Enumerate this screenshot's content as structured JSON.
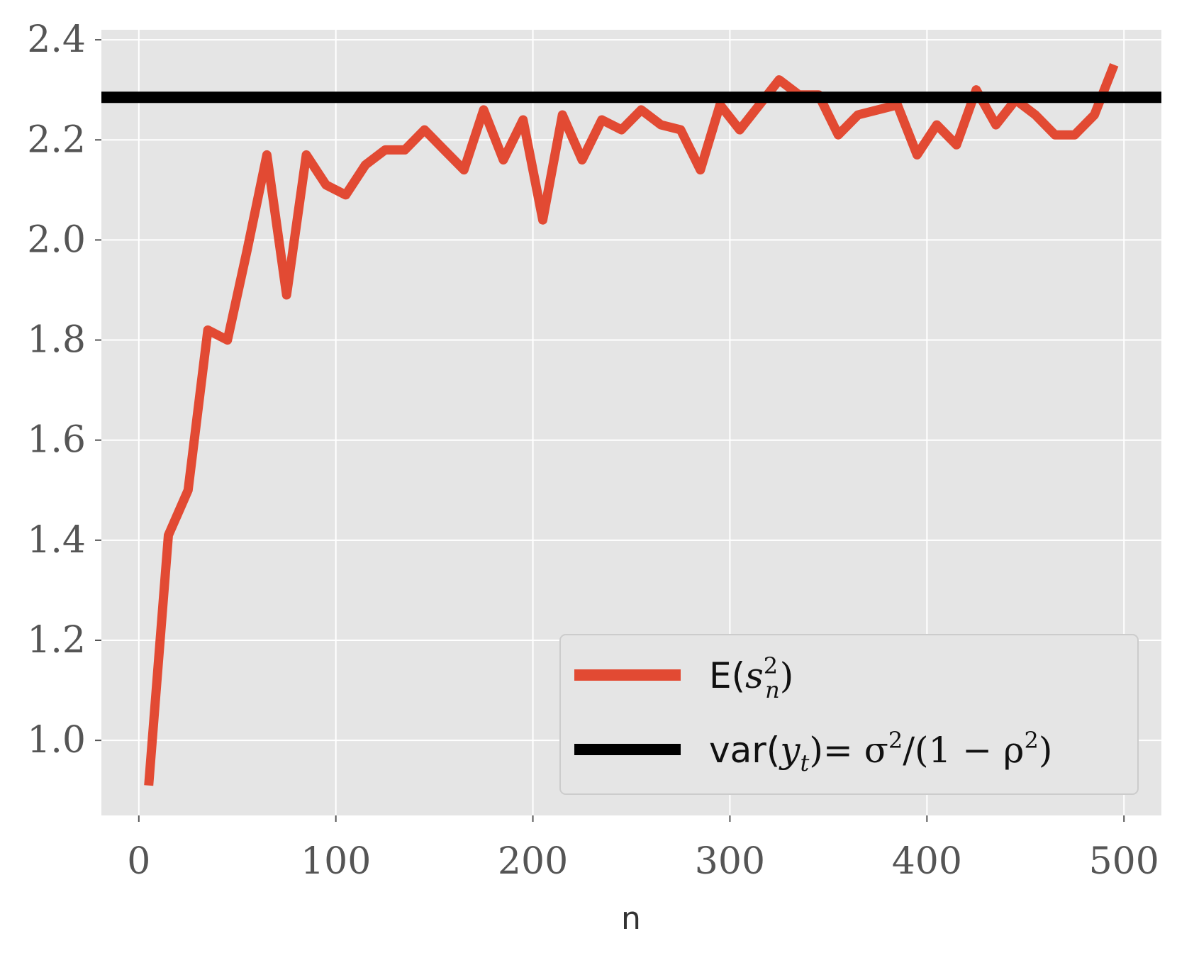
{
  "chart_data": {
    "type": "line",
    "xlabel": "n",
    "ylabel": "",
    "xlim": [
      -19,
      519
    ],
    "ylim": [
      0.85,
      2.42
    ],
    "xticks": [
      0,
      100,
      200,
      300,
      400,
      500
    ],
    "yticks": [
      1.0,
      1.2,
      1.4,
      1.6,
      1.8,
      2.0,
      2.2,
      2.4
    ],
    "xtick_labels": [
      "0",
      "100",
      "200",
      "300",
      "400",
      "500"
    ],
    "ytick_labels": [
      "1.0",
      "1.2",
      "1.4",
      "1.6",
      "1.8",
      "2.0",
      "2.2",
      "2.4"
    ],
    "grid": true,
    "legend_position": "lower-right",
    "series": [
      {
        "name": "E(s_n^2)",
        "color": "#E24A33",
        "x": [
          5,
          15,
          25,
          35,
          45,
          55,
          65,
          75,
          85,
          95,
          105,
          115,
          125,
          135,
          145,
          155,
          165,
          175,
          185,
          195,
          205,
          215,
          225,
          235,
          245,
          255,
          265,
          275,
          285,
          295,
          305,
          315,
          325,
          335,
          345,
          355,
          365,
          375,
          385,
          395,
          405,
          415,
          425,
          435,
          445,
          455,
          465,
          475,
          485,
          495
        ],
        "values": [
          0.91,
          1.41,
          1.5,
          1.82,
          1.8,
          1.98,
          2.17,
          1.89,
          2.17,
          2.11,
          2.09,
          2.15,
          2.18,
          2.18,
          2.22,
          2.18,
          2.14,
          2.26,
          2.16,
          2.24,
          2.04,
          2.25,
          2.16,
          2.24,
          2.22,
          2.26,
          2.23,
          2.22,
          2.14,
          2.27,
          2.22,
          2.27,
          2.32,
          2.29,
          2.29,
          2.21,
          2.25,
          2.26,
          2.27,
          2.17,
          2.23,
          2.19,
          2.3,
          2.23,
          2.28,
          2.25,
          2.21,
          2.21,
          2.25,
          2.35
        ]
      },
      {
        "name": "var(y_t)= σ^2/(1 − ρ^2)",
        "color": "#000000",
        "type": "hline",
        "y": 2.285
      }
    ]
  },
  "legend": {
    "entry1": {
      "prefix": "E(",
      "var": "s",
      "sup": "2",
      "sub": "n",
      "suffix": ")"
    },
    "entry2": {
      "prefix": "var(",
      "var": "y",
      "sub": "t",
      "mid": ")= σ",
      "sup1": "2",
      "tail1": "/(1 − ρ",
      "sup2": "2",
      "tail2": ")"
    }
  }
}
